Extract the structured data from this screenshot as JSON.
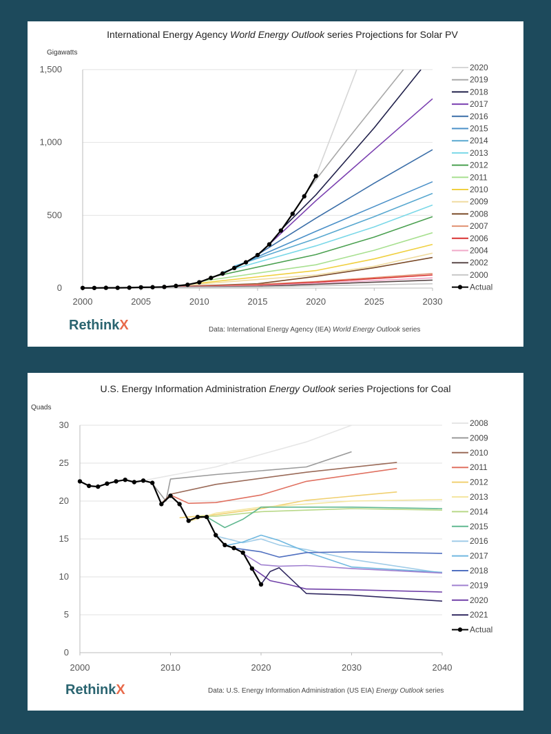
{
  "charts": [
    {
      "id": "solar",
      "title_pre": "International Energy Agency ",
      "title_em": "World Energy Outlook",
      "title_post": " series Projections for Solar PV",
      "unit": "Gigawatts",
      "source_pre": "Data: International Energy Agency (IEA) ",
      "source_em": "World Energy Outlook",
      "source_post": " series",
      "logo_main": "Rethink",
      "logo_x": "X"
    },
    {
      "id": "coal",
      "title_pre": "U.S. Energy Information Administration ",
      "title_em": "Energy Outlook",
      "title_post": " series Projections for Coal",
      "unit": "Quads",
      "source_pre": "Data: U.S. Energy Information Administration (US EIA) ",
      "source_em": "Energy Outlook",
      "source_post": " series",
      "logo_main": "Rethink",
      "logo_x": "X"
    }
  ],
  "chart_data": [
    {
      "type": "line",
      "title": "International Energy Agency World Energy Outlook series Projections for Solar PV",
      "ylabel": "Gigawatts",
      "xlim": [
        2000,
        2030
      ],
      "ylim": [
        0,
        1500
      ],
      "xticks": [
        2000,
        2005,
        2010,
        2015,
        2020,
        2025,
        2030
      ],
      "yticks": [
        0,
        500,
        1000,
        1500
      ],
      "ytick_labels": [
        "0",
        "500",
        "1,000",
        "1,500"
      ],
      "grid": true,
      "legend": "right",
      "series": [
        {
          "name": "2020",
          "color": "#d6d6d6",
          "x": [
            2020,
            2023.5
          ],
          "y": [
            770,
            1500
          ]
        },
        {
          "name": "2019",
          "color": "#a8a8a8",
          "x": [
            2019,
            2022,
            2025,
            2027.5
          ],
          "y": [
            640,
            950,
            1250,
            1500
          ]
        },
        {
          "name": "2018",
          "color": "#20204a",
          "x": [
            2017,
            2020,
            2025,
            2029
          ],
          "y": [
            400,
            640,
            1100,
            1500
          ]
        },
        {
          "name": "2017",
          "color": "#7a3fb0",
          "x": [
            2016,
            2020,
            2025,
            2030
          ],
          "y": [
            300,
            600,
            950,
            1300
          ]
        },
        {
          "name": "2016",
          "color": "#3a6ea8",
          "x": [
            2015,
            2020,
            2025,
            2030
          ],
          "y": [
            230,
            480,
            720,
            950
          ]
        },
        {
          "name": "2015",
          "color": "#4a90c8",
          "x": [
            2014,
            2020,
            2025,
            2030
          ],
          "y": [
            180,
            390,
            560,
            730
          ]
        },
        {
          "name": "2014",
          "color": "#58a8d0",
          "x": [
            2013,
            2020,
            2025,
            2030
          ],
          "y": [
            150,
            340,
            490,
            650
          ]
        },
        {
          "name": "2013",
          "color": "#7ad8e8",
          "x": [
            2012,
            2020,
            2025,
            2030
          ],
          "y": [
            110,
            290,
            420,
            570
          ]
        },
        {
          "name": "2012",
          "color": "#4aa050",
          "x": [
            2011,
            2020,
            2025,
            2030
          ],
          "y": [
            75,
            230,
            350,
            490
          ]
        },
        {
          "name": "2011",
          "color": "#a8e090",
          "x": [
            2010,
            2020,
            2025,
            2030
          ],
          "y": [
            45,
            160,
            260,
            380
          ]
        },
        {
          "name": "2010",
          "color": "#f0d040",
          "x": [
            2009,
            2020,
            2025,
            2030
          ],
          "y": [
            25,
            120,
            200,
            300
          ]
        },
        {
          "name": "2009",
          "color": "#f0dca0",
          "x": [
            2008,
            2020,
            2025,
            2030
          ],
          "y": [
            15,
            90,
            150,
            240
          ]
        },
        {
          "name": "2008",
          "color": "#7a4a28",
          "x": [
            2007,
            2015,
            2020,
            2025,
            2030
          ],
          "y": [
            8,
            30,
            80,
            140,
            210
          ]
        },
        {
          "name": "2007",
          "color": "#e09070",
          "x": [
            2006,
            2015,
            2020,
            2030
          ],
          "y": [
            5,
            25,
            45,
            100
          ]
        },
        {
          "name": "2006",
          "color": "#d83030",
          "x": [
            2005,
            2015,
            2020,
            2030
          ],
          "y": [
            4,
            20,
            40,
            90
          ]
        },
        {
          "name": "2004",
          "color": "#f0a8c8",
          "x": [
            2003,
            2015,
            2030
          ],
          "y": [
            2,
            15,
            70
          ]
        },
        {
          "name": "2002",
          "color": "#5a4848",
          "x": [
            2001,
            2015,
            2030
          ],
          "y": [
            1,
            12,
            55
          ]
        },
        {
          "name": "2000",
          "color": "#c8c8c8",
          "x": [
            2000,
            2015,
            2030
          ],
          "y": [
            1,
            8,
            30
          ]
        },
        {
          "name": "Actual",
          "color": "#000000",
          "marker": true,
          "x": [
            2000,
            2001,
            2002,
            2003,
            2004,
            2005,
            2006,
            2007,
            2008,
            2009,
            2010,
            2011,
            2012,
            2013,
            2014,
            2015,
            2016,
            2017,
            2018,
            2019,
            2020
          ],
          "y": [
            1,
            1,
            2,
            2,
            3,
            5,
            6,
            8,
            15,
            23,
            40,
            70,
            100,
            138,
            177,
            227,
            300,
            395,
            510,
            630,
            770
          ]
        }
      ]
    },
    {
      "type": "line",
      "title": "U.S. Energy Information Administration Energy Outlook series Projections for Coal",
      "ylabel": "Quads",
      "xlim": [
        2000,
        2040
      ],
      "ylim": [
        0,
        30
      ],
      "xticks": [
        2000,
        2010,
        2020,
        2030,
        2040
      ],
      "yticks": [
        0,
        5,
        10,
        15,
        20,
        25,
        30
      ],
      "ytick_labels": [
        "0",
        "5",
        "10",
        "15",
        "20",
        "25",
        "30"
      ],
      "grid": true,
      "legend": "right",
      "series": [
        {
          "name": "2008",
          "color": "#e6e6e6",
          "x": [
            2007,
            2015,
            2025,
            2030
          ],
          "y": [
            22.7,
            24.5,
            27.8,
            30
          ]
        },
        {
          "name": "2009",
          "color": "#9a9a9a",
          "x": [
            2008,
            2009.5,
            2010,
            2015,
            2025,
            2030
          ],
          "y": [
            22.3,
            20,
            22.9,
            23.5,
            24.5,
            26.5
          ]
        },
        {
          "name": "2010",
          "color": "#9a6a58",
          "x": [
            2009,
            2010,
            2015,
            2025,
            2035
          ],
          "y": [
            19.7,
            20.9,
            22.2,
            23.8,
            25.1
          ]
        },
        {
          "name": "2011",
          "color": "#e07060",
          "x": [
            2010,
            2012,
            2015,
            2020,
            2025,
            2035
          ],
          "y": [
            20.8,
            19.7,
            19.8,
            20.8,
            22.6,
            24.3
          ]
        },
        {
          "name": "2012",
          "color": "#f0d070",
          "x": [
            2011,
            2015,
            2020,
            2025,
            2035
          ],
          "y": [
            17.8,
            18.2,
            19.0,
            20.1,
            21.2
          ]
        },
        {
          "name": "2013",
          "color": "#f4e6a0",
          "x": [
            2012,
            2015,
            2020,
            2030,
            2040
          ],
          "y": [
            17.3,
            18.4,
            19.2,
            20.0,
            20.2
          ]
        },
        {
          "name": "2014",
          "color": "#b8d888",
          "x": [
            2013,
            2015,
            2020,
            2030,
            2040
          ],
          "y": [
            18.0,
            18.0,
            18.6,
            19.0,
            18.8
          ]
        },
        {
          "name": "2015",
          "color": "#60b890",
          "x": [
            2014,
            2016,
            2018,
            2020,
            2025,
            2030,
            2040
          ],
          "y": [
            17.9,
            16.5,
            17.6,
            19.2,
            19.2,
            19.2,
            19.0
          ]
        },
        {
          "name": "2016",
          "color": "#a0cce8",
          "x": [
            2015,
            2018,
            2020,
            2022,
            2025,
            2030,
            2040
          ],
          "y": [
            15.4,
            14.5,
            15.0,
            14.2,
            13.6,
            12.3,
            10.5
          ]
        },
        {
          "name": "2017",
          "color": "#70b8e0",
          "x": [
            2016,
            2018,
            2020,
            2022,
            2025,
            2030,
            2040
          ],
          "y": [
            14.1,
            14.6,
            15.5,
            14.8,
            13.3,
            11.3,
            10.6
          ]
        },
        {
          "name": "2018",
          "color": "#5070c0",
          "x": [
            2017,
            2020,
            2022,
            2025,
            2030,
            2040
          ],
          "y": [
            13.8,
            13.3,
            12.6,
            13.2,
            13.3,
            13.1
          ]
        },
        {
          "name": "2019",
          "color": "#a080d0",
          "x": [
            2018,
            2020,
            2022,
            2025,
            2030,
            2040
          ],
          "y": [
            13.1,
            11.6,
            11.4,
            11.5,
            11.1,
            10.5
          ]
        },
        {
          "name": "2020",
          "color": "#7040a8",
          "x": [
            2019,
            2021,
            2023,
            2025,
            2030,
            2040
          ],
          "y": [
            11.2,
            9.5,
            9.0,
            8.4,
            8.3,
            8.0
          ]
        },
        {
          "name": "2021",
          "color": "#302860",
          "x": [
            2020,
            2021,
            2022,
            2025,
            2030,
            2040
          ],
          "y": [
            9.0,
            10.7,
            11.2,
            7.8,
            7.6,
            6.8
          ]
        },
        {
          "name": "Actual",
          "color": "#000000",
          "marker": true,
          "x": [
            2000,
            2001,
            2002,
            2003,
            2004,
            2005,
            2006,
            2007,
            2008,
            2009,
            2010,
            2011,
            2012,
            2013,
            2014,
            2015,
            2016,
            2017,
            2018,
            2019,
            2020
          ],
          "y": [
            22.6,
            22.0,
            21.9,
            22.3,
            22.6,
            22.8,
            22.5,
            22.7,
            22.4,
            19.6,
            20.7,
            19.6,
            17.4,
            17.9,
            17.9,
            15.5,
            14.2,
            13.8,
            13.2,
            11.1,
            9.0
          ]
        }
      ]
    }
  ]
}
